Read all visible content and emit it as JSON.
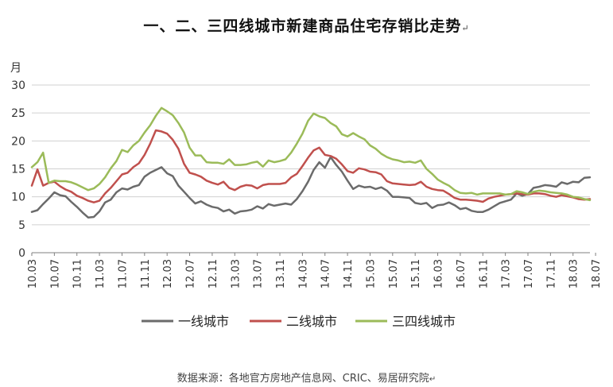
{
  "title": "一、二、三四线城市新建商品住宅存销比走势",
  "source": "数据来源：各地官方房地产信息网、CRIC、易居研究院",
  "chart_data": {
    "type": "line",
    "title": "一、二、三四线城市新建商品住宅存销比走势",
    "ylabel": "月",
    "ylim": [
      0,
      30
    ],
    "yticks": [
      0,
      5,
      10,
      15,
      20,
      25,
      30
    ],
    "x_start": "2010-03",
    "x_end": "2018-07",
    "x_tick_labels": [
      "10.03",
      "10.07",
      "10.11",
      "11.03",
      "11.07",
      "11.11",
      "12.03",
      "12.07",
      "12.11",
      "13.03",
      "13.07",
      "13.11",
      "14.03",
      "14.07",
      "14.11",
      "15.03",
      "15.07",
      "15.11",
      "16.03",
      "16.07",
      "16.11",
      "17.03",
      "17.07",
      "17.11",
      "18.03",
      "18.07"
    ],
    "grid": true,
    "legend_position": "bottom",
    "series": [
      {
        "name": "一线城市",
        "color": "#6b6b6b",
        "values": [
          7.3,
          7.6,
          8.7,
          9.7,
          10.8,
          10.3,
          10.1,
          9.1,
          8.2,
          7.2,
          6.3,
          6.4,
          7.4,
          9.0,
          9.5,
          10.8,
          11.5,
          11.3,
          11.8,
          12.1,
          13.6,
          14.3,
          14.8,
          15.3,
          14.2,
          13.7,
          12.0,
          10.9,
          9.8,
          8.8,
          9.2,
          8.6,
          8.2,
          8.0,
          7.4,
          7.7,
          7.0,
          7.4,
          7.5,
          7.7,
          8.3,
          7.9,
          8.7,
          8.4,
          8.6,
          8.8,
          8.6,
          9.6,
          11.0,
          12.7,
          14.8,
          16.2,
          15.2,
          17.1,
          15.7,
          14.5,
          12.9,
          11.4,
          12.0,
          11.7,
          11.8,
          11.4,
          11.7,
          11.1,
          10.0,
          10.0,
          9.9,
          9.8,
          8.9,
          8.7,
          8.9,
          8.0,
          8.5,
          8.6,
          9.0,
          8.5,
          7.8,
          8.0,
          7.5,
          7.3,
          7.3,
          7.7,
          8.3,
          8.9,
          9.2,
          9.5,
          10.6,
          10.2,
          10.5,
          11.6,
          11.8,
          12.1,
          12.0,
          11.8,
          12.6,
          12.3,
          12.7,
          12.6,
          13.4,
          13.5
        ]
      },
      {
        "name": "二线城市",
        "color": "#c0504d",
        "values": [
          12.0,
          14.9,
          12.0,
          12.5,
          12.7,
          11.9,
          11.3,
          10.9,
          10.2,
          9.8,
          9.3,
          9.0,
          9.3,
          10.6,
          11.6,
          12.8,
          14.0,
          14.3,
          15.3,
          16.0,
          17.5,
          19.5,
          21.9,
          21.7,
          21.3,
          20.2,
          18.6,
          15.9,
          14.3,
          14.0,
          13.6,
          12.9,
          12.5,
          12.2,
          12.7,
          11.6,
          11.2,
          11.8,
          12.1,
          12.0,
          11.5,
          12.1,
          12.3,
          12.3,
          12.3,
          12.5,
          13.5,
          14.1,
          15.5,
          17.0,
          18.3,
          18.8,
          17.5,
          17.3,
          16.8,
          15.8,
          14.6,
          14.3,
          15.1,
          14.9,
          14.5,
          14.4,
          14.0,
          12.8,
          12.4,
          12.3,
          12.2,
          12.1,
          12.2,
          12.7,
          11.8,
          11.4,
          11.2,
          11.1,
          10.5,
          9.8,
          9.5,
          9.5,
          9.4,
          9.3,
          9.1,
          9.7,
          10.0,
          10.2,
          10.4,
          10.5,
          10.6,
          10.5,
          10.4,
          10.6,
          10.6,
          10.5,
          10.2,
          10.0,
          10.3,
          10.1,
          9.9,
          9.6,
          9.5,
          9.6
        ]
      },
      {
        "name": "三四线城市",
        "color": "#9bbb59",
        "values": [
          15.3,
          16.2,
          17.9,
          12.5,
          12.9,
          12.8,
          12.8,
          12.6,
          12.2,
          11.7,
          11.2,
          11.5,
          12.3,
          13.5,
          15.1,
          16.4,
          18.4,
          18.0,
          19.2,
          20.0,
          21.5,
          22.8,
          24.5,
          25.9,
          25.3,
          24.6,
          23.2,
          21.5,
          18.8,
          17.4,
          17.4,
          16.2,
          16.1,
          16.1,
          15.9,
          16.7,
          15.7,
          15.7,
          15.8,
          16.1,
          16.3,
          15.4,
          16.5,
          16.2,
          16.4,
          16.7,
          17.9,
          19.5,
          21.3,
          23.6,
          24.9,
          24.4,
          24.1,
          23.2,
          22.6,
          21.2,
          20.8,
          21.4,
          20.8,
          20.3,
          19.2,
          18.6,
          17.7,
          17.1,
          16.7,
          16.5,
          16.2,
          16.3,
          16.1,
          16.5,
          15.0,
          14.1,
          13.1,
          12.5,
          12.0,
          11.2,
          10.7,
          10.6,
          10.7,
          10.4,
          10.6,
          10.6,
          10.6,
          10.6,
          10.4,
          10.5,
          11.0,
          10.8,
          10.5,
          10.9,
          11.1,
          11.0,
          10.8,
          10.7,
          10.6,
          10.4,
          10.0,
          9.9,
          9.6,
          9.4
        ]
      }
    ]
  }
}
